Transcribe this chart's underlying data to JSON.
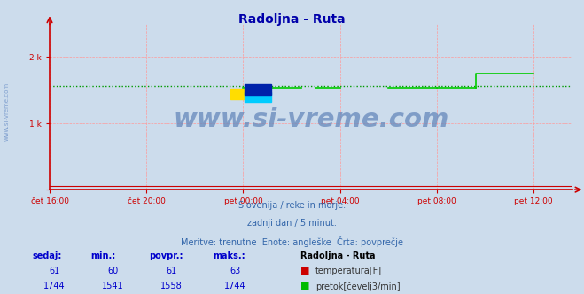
{
  "title": "Radoljna - Ruta",
  "title_color": "#0000aa",
  "bg_color": "#ccdcec",
  "plot_bg_color": "#ccdcec",
  "grid_color": "#ff9999",
  "axis_color": "#cc0000",
  "tick_label_color": "#0000cc",
  "ylim": [
    0,
    2500
  ],
  "xlim": [
    0,
    1296
  ],
  "x_tick_positions": [
    0,
    240,
    480,
    720,
    960,
    1200
  ],
  "x_tick_labels": [
    "čet 16:00",
    "čet 20:00",
    "pet 00:00",
    "pet 04:00",
    "pet 08:00",
    "pet 12:00"
  ],
  "y_tick_positions": [
    0,
    1000,
    2000
  ],
  "y_tick_labels": [
    "",
    "1 k",
    "2 k"
  ],
  "temp_color": "#cc0000",
  "flow_color": "#00cc00",
  "flow_avg_color": "#009900",
  "temp_avg": 61,
  "flow_avg": 1558,
  "flow_segments": [
    {
      "x": [
        480,
        624
      ],
      "y": [
        1541,
        1541
      ]
    },
    {
      "x": [
        660,
        720
      ],
      "y": [
        1541,
        1541
      ]
    },
    {
      "x": [
        840,
        960
      ],
      "y": [
        1541,
        1541
      ]
    },
    {
      "x": [
        960,
        1056
      ],
      "y": [
        1541,
        1541
      ]
    },
    {
      "x": [
        1056,
        1056,
        1200
      ],
      "y": [
        1541,
        1744,
        1744
      ]
    }
  ],
  "subtitle_lines": [
    "Slovenija / reke in morje.",
    "zadnji dan / 5 minut.",
    "Meritve: trenutne  Enote: angleške  Črta: povprečje"
  ],
  "subtitle_color": "#3366aa",
  "table_header_color": "#0000cc",
  "table_value_color": "#0000cc",
  "table_headers": [
    "sedaj:",
    "min.:",
    "povpr.:",
    "maks.:"
  ],
  "table_row1_vals": [
    "61",
    "60",
    "61",
    "63"
  ],
  "table_row2_vals": [
    "1744",
    "1541",
    "1558",
    "1744"
  ],
  "legend_title": "Radoljna - Ruta",
  "legend_items": [
    {
      "label": "temperatura[F]",
      "color": "#cc0000"
    },
    {
      "label": "pretok[čevelj3/min]",
      "color": "#00bb00"
    }
  ],
  "watermark": "www.si-vreme.com",
  "watermark_color": "#6688bb",
  "side_label": "www.si-vreme.com",
  "side_label_color": "#7799cc"
}
